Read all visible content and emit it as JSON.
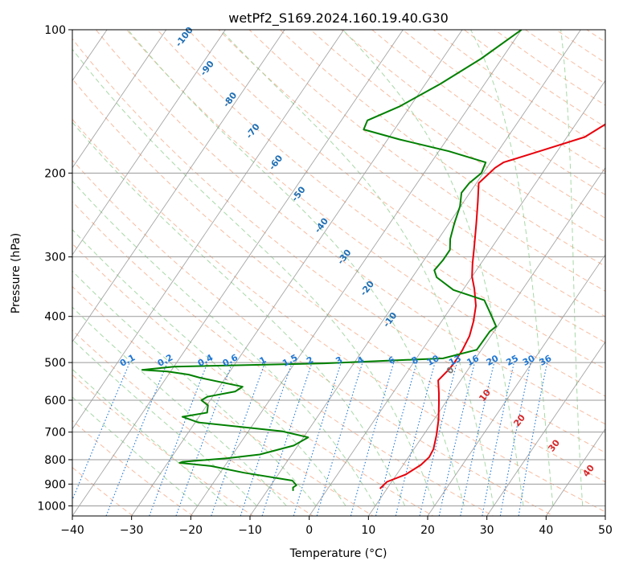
{
  "chart_data": {
    "type": "line",
    "title": "wetPf2_S169.2024.160.19.40.G30",
    "xlabel": "Temperature (°C)",
    "ylabel": "Pressure (hPa)",
    "xlim": [
      -40,
      50
    ],
    "ylim": [
      1050,
      100
    ],
    "y_scale": "log",
    "grid": true,
    "x_ticks": [
      -40,
      -30,
      -20,
      -10,
      0,
      10,
      20,
      30,
      40,
      50
    ],
    "x_tick_labels": [
      "−40",
      "−30",
      "−20",
      "−10",
      "0",
      "10",
      "20",
      "30",
      "40",
      "50"
    ],
    "y_ticks": [
      1000,
      900,
      800,
      700,
      600,
      500,
      400,
      300,
      200,
      100
    ],
    "y_tick_labels": [
      "1000",
      "900",
      "800",
      "700",
      "600",
      "500",
      "400",
      "300",
      "200",
      "100"
    ],
    "series": [
      {
        "color": "#e8000b",
        "points": [
          [
            8.8,
            920
          ],
          [
            9.2,
            890
          ],
          [
            11.5,
            860
          ],
          [
            13.0,
            820
          ],
          [
            13.5,
            790
          ],
          [
            13.3,
            760
          ],
          [
            12.2,
            710
          ],
          [
            10.8,
            660
          ],
          [
            9.0,
            610
          ],
          [
            7.8,
            580
          ],
          [
            6.2,
            545
          ],
          [
            6.8,
            515
          ],
          [
            6.9,
            500
          ],
          [
            6.8,
            470
          ],
          [
            6.4,
            440
          ],
          [
            5.4,
            410
          ],
          [
            4.0,
            380
          ],
          [
            1.8,
            350
          ],
          [
            0.0,
            330
          ],
          [
            -1.4,
            310
          ],
          [
            -3.1,
            285
          ],
          [
            -5.4,
            255
          ],
          [
            -7.6,
            230
          ],
          [
            -9.6,
            210
          ],
          [
            -8.6,
            195
          ],
          [
            -7.8,
            190
          ],
          [
            -3.0,
            180
          ],
          [
            3.0,
            168
          ],
          [
            5.0,
            158
          ],
          [
            5.6,
            150
          ],
          [
            6.5,
            140
          ],
          [
            7.0,
            130
          ],
          [
            7.5,
            120
          ],
          [
            9.0,
            110
          ],
          [
            11.0,
            100
          ]
        ]
      },
      {
        "color": "#008000",
        "points": [
          [
            -5.6,
            930
          ],
          [
            -6.0,
            915
          ],
          [
            -5.7,
            905
          ],
          [
            -6.9,
            885
          ],
          [
            -16.0,
            852
          ],
          [
            -22.3,
            825
          ],
          [
            -28.0,
            812
          ],
          [
            -27.6,
            808
          ],
          [
            -20.4,
            794
          ],
          [
            -15.4,
            780
          ],
          [
            -10.7,
            747
          ],
          [
            -9.2,
            718
          ],
          [
            -14.3,
            697
          ],
          [
            -29.5,
            668
          ],
          [
            -32.8,
            650
          ],
          [
            -29.1,
            637
          ],
          [
            -29.8,
            615
          ],
          [
            -31.5,
            600
          ],
          [
            -30.9,
            590
          ],
          [
            -26.8,
            575
          ],
          [
            -26.1,
            562
          ],
          [
            -34.4,
            538
          ],
          [
            -36.6,
            530
          ],
          [
            -40.5,
            522
          ],
          [
            -45.0,
            518
          ],
          [
            -40.0,
            510
          ],
          [
            -15.0,
            502
          ],
          [
            4.5,
            490
          ],
          [
            9.2,
            470
          ],
          [
            9.3,
            430
          ],
          [
            9.8,
            420
          ],
          [
            6.9,
            390
          ],
          [
            4.8,
            370
          ],
          [
            -1.6,
            352
          ],
          [
            -5.9,
            331
          ],
          [
            -7.1,
            320
          ],
          [
            -6.8,
            305
          ],
          [
            -6.8,
            290
          ],
          [
            -8.0,
            275
          ],
          [
            -9.1,
            255
          ],
          [
            -10.1,
            235
          ],
          [
            -11.4,
            220
          ],
          [
            -11.2,
            210
          ],
          [
            -10.3,
            200
          ],
          [
            -10.8,
            190
          ],
          [
            -18.3,
            180
          ],
          [
            -28.0,
            170
          ],
          [
            -35.2,
            162
          ],
          [
            -35.6,
            155
          ],
          [
            -31.8,
            145
          ],
          [
            -27.5,
            130
          ],
          [
            -23.5,
            115
          ],
          [
            -20.0,
            100
          ]
        ]
      }
    ],
    "moist_adiabat_labels": [
      "-100",
      "-90",
      "-80",
      "-70",
      "-60",
      "-50",
      "-40",
      "-30",
      "-20",
      "-10"
    ],
    "mixing_ratio_labels": [
      "0.1",
      "0.2",
      "0.4",
      "0.6",
      "1",
      "1.5",
      "2",
      "3",
      "4",
      "6",
      "8",
      "10",
      "13",
      "16",
      "20",
      "25",
      "30",
      "36"
    ],
    "dry_adiabat_labels": [
      "0",
      "10",
      "20",
      "30",
      "40"
    ],
    "colors": {
      "temperature": "#e8000b",
      "dewpoint": "#008000",
      "isotherm": "#808080",
      "dry_adiabat": "#f4a582",
      "moist_adiabat": "#98d198",
      "mixing_ratio": "#1f77d4",
      "moist_label": "#1f6fb4",
      "dry_label": "#d62728",
      "zero_label": "#777777",
      "frame": "#000000"
    }
  }
}
